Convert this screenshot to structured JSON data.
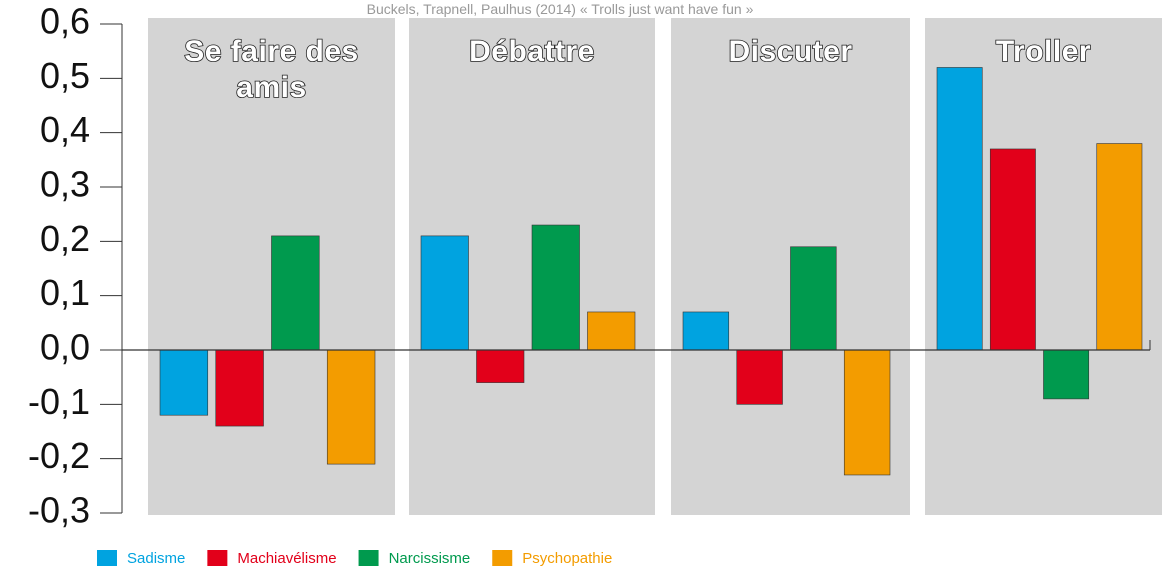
{
  "chart_data": {
    "type": "bar",
    "title": "Buckels, Trapnell, Paulhus (2014) « Trolls just want have fun »",
    "categories": [
      "Se faire des amis",
      "Débattre",
      "Discuter",
      "Troller"
    ],
    "series": [
      {
        "name": "Sadisme",
        "color": "#00a3e0",
        "values": [
          -0.12,
          0.21,
          0.07,
          0.52
        ]
      },
      {
        "name": "Machiavélisme",
        "color": "#e2001a",
        "values": [
          -0.14,
          -0.06,
          -0.1,
          0.37
        ]
      },
      {
        "name": "Narcissisme",
        "color": "#009a4e",
        "values": [
          0.21,
          0.23,
          0.19,
          -0.09
        ]
      },
      {
        "name": "Psychopathie",
        "color": "#f39c00",
        "values": [
          -0.21,
          0.07,
          -0.23,
          0.38
        ]
      }
    ],
    "ylim": [
      -0.3,
      0.6
    ],
    "yticks": [
      {
        "value": 0.6,
        "label": "0,6"
      },
      {
        "value": 0.5,
        "label": "0,5"
      },
      {
        "value": 0.4,
        "label": "0,4"
      },
      {
        "value": 0.3,
        "label": "0,3"
      },
      {
        "value": 0.2,
        "label": "0,2"
      },
      {
        "value": 0.1,
        "label": "0,1"
      },
      {
        "value": 0.0,
        "label": "0,0"
      },
      {
        "value": -0.1,
        "label": "-0,1"
      },
      {
        "value": -0.2,
        "label": "-0,2"
      },
      {
        "value": -0.3,
        "label": "-0,3"
      }
    ]
  }
}
